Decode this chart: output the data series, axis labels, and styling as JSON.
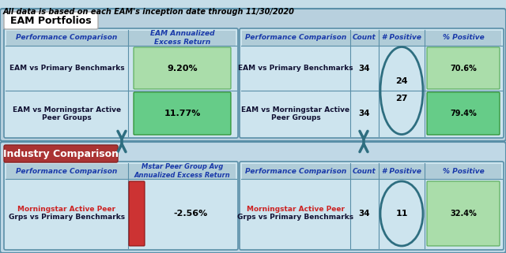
{
  "title": "All data is based on each EAM's inception date through 11/30/2020",
  "bg_color": "#c5dde8",
  "eam_section_bg": "#b8d0de",
  "industry_section_bg": "#c0d8e6",
  "table_bg": "#cde4ee",
  "table_border": "#5a8fa8",
  "header_bg": "#b0ccd8",
  "green_light": "#aaddaa",
  "green_dark": "#66cc88",
  "red_cell": "#cc3333",
  "red_label_bg": "#aa3333",
  "eam_color": "#1a3aaa",
  "mstar_color": "#cc2222",
  "header_text_color": "#1a3aaa",
  "body_text_color": "#111133",
  "arrow_color": "#2e6e80",
  "eam_section_label": "EAM Portfolios",
  "industry_section_label": "Industry Comparison",
  "left_eam_h1": "Performance Comparison",
  "left_eam_h2": "EAM Annualized\nExcess Return",
  "left_eam_r1_label_bold": "EAM",
  "left_eam_r1_label_rest": " vs Primary Benchmarks",
  "left_eam_r1_val": "9.20%",
  "left_eam_r2_label_bold": "EAM",
  "left_eam_r2_label_rest": " vs Morningstar Active\nPeer Groups",
  "left_eam_r2_val": "11.77%",
  "right_eam_h1": "Performance Comparison",
  "right_eam_h2": "Count",
  "right_eam_h3": "# Positive",
  "right_eam_h4": "% Positive",
  "right_eam_r1_label_bold": "EAM",
  "right_eam_r1_label_rest": " vs Primary Benchmarks",
  "right_eam_r1_count": "34",
  "right_eam_r1_pos": "24",
  "right_eam_r1_pct": "70.6%",
  "right_eam_r2_label_bold": "EAM",
  "right_eam_r2_label_rest": " vs Morningstar Active\nPeer Groups",
  "right_eam_r2_count": "34",
  "right_eam_r2_pos": "27",
  "right_eam_r2_pct": "79.4%",
  "left_ind_h1": "Performance Comparison",
  "left_ind_h2": "Mstar Peer Group Avg\nAnnualized Excess Return",
  "left_ind_r1_bold": "Morningstar",
  "left_ind_r1_rest": " Active Peer\nGrps vs Primary Benchmarks",
  "left_ind_r1_val": "-2.56%",
  "right_ind_h1": "Performance Comparison",
  "right_ind_h2": "Count",
  "right_ind_h3": "# Positive",
  "right_ind_h4": "% Positive",
  "right_ind_r1_bold": "Morningstar",
  "right_ind_r1_rest": " Active Peer\nGrps vs Primary Benchmarks",
  "right_ind_r1_count": "34",
  "right_ind_r1_pos": "11",
  "right_ind_r1_pct": "32.4%"
}
